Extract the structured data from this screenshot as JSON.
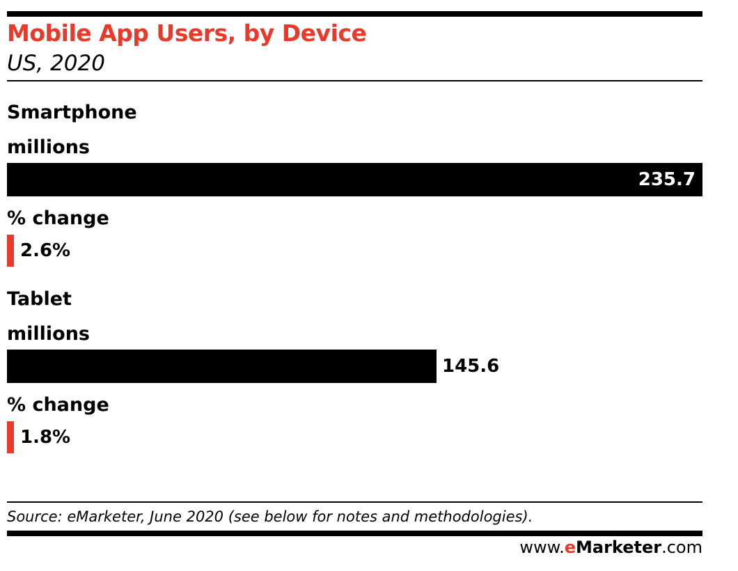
{
  "colors": {
    "accent": "#e8392b",
    "bar": "#000000",
    "text": "#000000"
  },
  "chart_data": {
    "type": "bar",
    "title": "Mobile App Users, by Device",
    "subtitle": "US, 2020",
    "groups": [
      {
        "label": "Smartphone",
        "unit_label": "millions",
        "value": 235.7,
        "value_label": "235.7",
        "change_label_heading": "% change",
        "change": 2.6,
        "change_label": "2.6%"
      },
      {
        "label": "Tablet",
        "unit_label": "millions",
        "value": 145.6,
        "value_label": "145.6",
        "change_label_heading": "% change",
        "change": 1.8,
        "change_label": "1.8%"
      }
    ],
    "xlim": [
      0,
      235.7
    ],
    "grid": false,
    "legend": "none"
  },
  "source": "Source: eMarketer, June 2020 (see below for notes and methodologies).",
  "brand": {
    "prefix": "www.",
    "e": "e",
    "name": "Marketer",
    "suffix": ".com"
  }
}
